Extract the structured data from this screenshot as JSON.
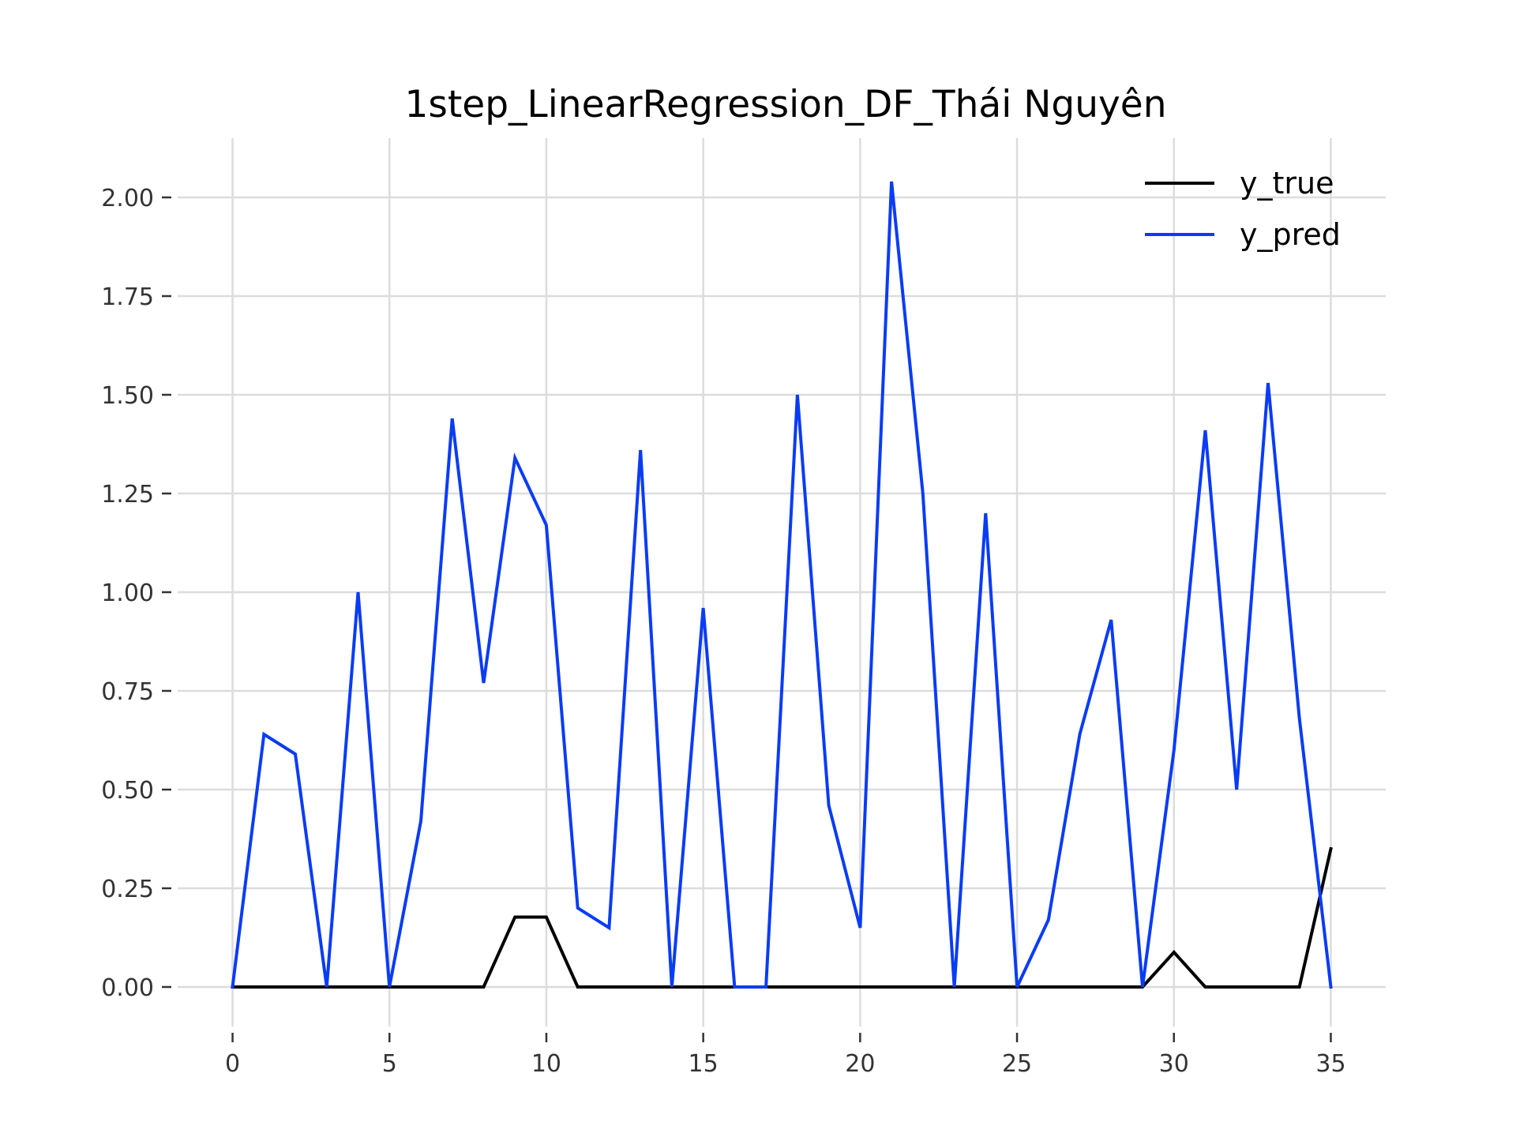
{
  "chart_data": {
    "type": "line",
    "title": "1step_LinearRegression_DF_Thái Nguyên",
    "xlabel": "",
    "ylabel": "",
    "xlim": [
      -1.75,
      36.75
    ],
    "ylim": [
      -0.1,
      2.15
    ],
    "xticks": [
      0,
      5,
      10,
      15,
      20,
      25,
      30,
      35
    ],
    "xtick_labels": [
      "0",
      "5",
      "10",
      "15",
      "20",
      "25",
      "30",
      "35"
    ],
    "yticks": [
      0,
      0.25,
      0.5,
      0.75,
      1.0,
      1.25,
      1.5,
      1.75,
      2.0
    ],
    "ytick_labels": [
      "0.00",
      "0.25",
      "0.50",
      "0.75",
      "1.00",
      "1.25",
      "1.50",
      "1.75",
      "2.00"
    ],
    "grid": true,
    "legend_position": "top-right",
    "x": [
      0,
      1,
      2,
      3,
      4,
      5,
      6,
      7,
      8,
      9,
      10,
      11,
      12,
      13,
      14,
      15,
      16,
      17,
      18,
      19,
      20,
      21,
      22,
      23,
      24,
      25,
      26,
      27,
      28,
      29,
      30,
      31,
      32,
      33,
      34,
      35
    ],
    "series": [
      {
        "name": "y_true",
        "color": "#000000",
        "values": [
          0,
          0,
          0,
          0,
          0,
          0,
          0,
          0,
          0,
          0.177,
          0.177,
          0,
          0,
          0,
          0,
          0,
          0,
          0,
          0,
          0,
          0,
          0,
          0,
          0,
          0,
          0,
          0,
          0,
          0,
          0,
          0.088,
          0,
          0,
          0,
          0,
          0.35
        ]
      },
      {
        "name": "y_pred",
        "color": "#0a3cf5",
        "values": [
          0,
          0.64,
          0.59,
          0,
          1.0,
          0,
          0.42,
          1.44,
          0.77,
          1.34,
          1.17,
          0.2,
          0.15,
          1.36,
          0,
          0.96,
          0,
          0,
          1.5,
          0.46,
          0.15,
          2.04,
          1.25,
          0,
          1.2,
          0,
          0.17,
          0.64,
          0.93,
          0,
          0.6,
          1.41,
          0.5,
          1.53,
          0.68,
          0
        ]
      }
    ]
  }
}
